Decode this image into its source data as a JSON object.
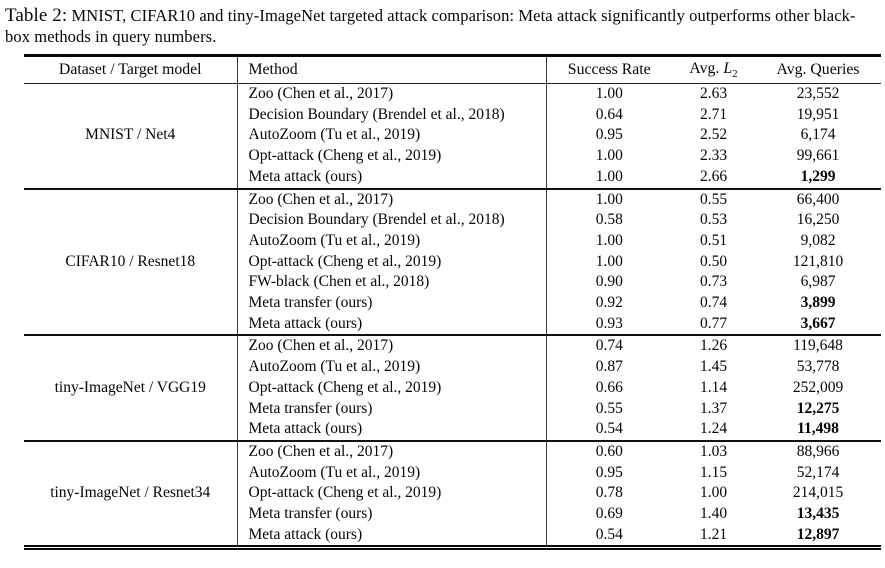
{
  "caption": {
    "label": "Table 2:",
    "text": "MNIST, CIFAR10 and tiny-ImageNet targeted attack comparison: Meta attack significantly outperforms other black-box methods in query numbers."
  },
  "table": {
    "headers": {
      "dataset": "Dataset / Target model",
      "method": "Method",
      "success_rate": "Success Rate",
      "avg_l2_prefix": "Avg.",
      "avg_l2_var": "L",
      "avg_l2_sub": "2",
      "avg_queries": "Avg. Queries"
    },
    "groups": [
      {
        "dataset": "MNIST / Net4",
        "rows": [
          {
            "method": "Zoo (Chen et al., 2017)",
            "success_rate": "1.00",
            "avg_l2": "2.63",
            "avg_queries": "23,552",
            "queries_bold": false
          },
          {
            "method": "Decision Boundary (Brendel et al., 2018)",
            "success_rate": "0.64",
            "avg_l2": "2.71",
            "avg_queries": "19,951",
            "queries_bold": false
          },
          {
            "method": "AutoZoom (Tu et al., 2019)",
            "success_rate": "0.95",
            "avg_l2": "2.52",
            "avg_queries": "6,174",
            "queries_bold": false
          },
          {
            "method": "Opt-attack (Cheng et al., 2019)",
            "success_rate": "1.00",
            "avg_l2": "2.33",
            "avg_queries": "99,661",
            "queries_bold": false
          },
          {
            "method": "Meta attack (ours)",
            "success_rate": "1.00",
            "avg_l2": "2.66",
            "avg_queries": "1,299",
            "queries_bold": true
          }
        ]
      },
      {
        "dataset": "CIFAR10 / Resnet18",
        "rows": [
          {
            "method": "Zoo (Chen et al., 2017)",
            "success_rate": "1.00",
            "avg_l2": "0.55",
            "avg_queries": "66,400",
            "queries_bold": false
          },
          {
            "method": "Decision Boundary (Brendel et al., 2018)",
            "success_rate": "0.58",
            "avg_l2": "0.53",
            "avg_queries": "16,250",
            "queries_bold": false
          },
          {
            "method": "AutoZoom (Tu et al., 2019)",
            "success_rate": "1.00",
            "avg_l2": "0.51",
            "avg_queries": "9,082",
            "queries_bold": false
          },
          {
            "method": "Opt-attack (Cheng et al., 2019)",
            "success_rate": "1.00",
            "avg_l2": "0.50",
            "avg_queries": "121,810",
            "queries_bold": false
          },
          {
            "method": "FW-black (Chen et al., 2018)",
            "success_rate": "0.90",
            "avg_l2": "0.73",
            "avg_queries": "6,987",
            "queries_bold": false
          },
          {
            "method": "Meta transfer (ours)",
            "success_rate": "0.92",
            "avg_l2": "0.74",
            "avg_queries": "3,899",
            "queries_bold": true
          },
          {
            "method": "Meta attack (ours)",
            "success_rate": "0.93",
            "avg_l2": "0.77",
            "avg_queries": "3,667",
            "queries_bold": true
          }
        ]
      },
      {
        "dataset": "tiny-ImageNet / VGG19",
        "rows": [
          {
            "method": "Zoo (Chen et al., 2017)",
            "success_rate": "0.74",
            "avg_l2": "1.26",
            "avg_queries": "119,648",
            "queries_bold": false
          },
          {
            "method": "AutoZoom (Tu et al., 2019)",
            "success_rate": "0.87",
            "avg_l2": "1.45",
            "avg_queries": "53,778",
            "queries_bold": false
          },
          {
            "method": "Opt-attack (Cheng et al., 2019)",
            "success_rate": "0.66",
            "avg_l2": "1.14",
            "avg_queries": "252,009",
            "queries_bold": false
          },
          {
            "method": "Meta transfer (ours)",
            "success_rate": "0.55",
            "avg_l2": "1.37",
            "avg_queries": "12,275",
            "queries_bold": true
          },
          {
            "method": "Meta attack (ours)",
            "success_rate": "0.54",
            "avg_l2": "1.24",
            "avg_queries": "11,498",
            "queries_bold": true
          }
        ]
      },
      {
        "dataset": "tiny-ImageNet / Resnet34",
        "rows": [
          {
            "method": "Zoo (Chen et al., 2017)",
            "success_rate": "0.60",
            "avg_l2": "1.03",
            "avg_queries": "88,966",
            "queries_bold": false
          },
          {
            "method": "AutoZoom (Tu et al., 2019)",
            "success_rate": "0.95",
            "avg_l2": "1.15",
            "avg_queries": "52,174",
            "queries_bold": false
          },
          {
            "method": "Opt-attack (Cheng et al., 2019)",
            "success_rate": "0.78",
            "avg_l2": "1.00",
            "avg_queries": "214,015",
            "queries_bold": false
          },
          {
            "method": "Meta transfer (ours)",
            "success_rate": "0.69",
            "avg_l2": "1.40",
            "avg_queries": "13,435",
            "queries_bold": true
          },
          {
            "method": "Meta attack (ours)",
            "success_rate": "0.54",
            "avg_l2": "1.21",
            "avg_queries": "12,897",
            "queries_bold": true
          }
        ]
      }
    ]
  }
}
